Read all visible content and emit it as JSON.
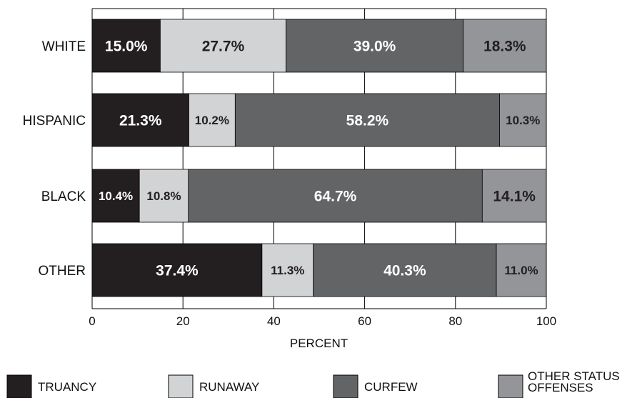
{
  "chart_data": {
    "type": "bar",
    "orientation": "horizontal",
    "stacked": true,
    "categories": [
      "WHITE",
      "HISPANIC",
      "BLACK",
      "OTHER"
    ],
    "series": [
      {
        "name": "TRUANCY",
        "color": "#231f20",
        "values": [
          15.0,
          21.3,
          10.4,
          37.4
        ],
        "labels": [
          "15.0%",
          "21.3%",
          "10.4%",
          "37.4%"
        ]
      },
      {
        "name": "RUNAWAY",
        "color": "#d1d3d4",
        "values": [
          27.7,
          10.2,
          10.8,
          11.3
        ],
        "labels": [
          "27.7%",
          "10.2%",
          "10.8%",
          "11.3%"
        ]
      },
      {
        "name": "CURFEW",
        "color": "#636466",
        "values": [
          39.0,
          58.2,
          64.7,
          40.3
        ],
        "labels": [
          "39.0%",
          "58.2%",
          "64.7%",
          "40.3%"
        ]
      },
      {
        "name": "OTHER STATUS OFFENSES",
        "color": "#939598",
        "values": [
          18.3,
          10.3,
          14.1,
          11.0
        ],
        "labels": [
          "18.3%",
          "10.3%",
          "14.1%",
          "11.0%"
        ]
      }
    ],
    "xlabel": "PERCENT",
    "xlim": [
      0,
      100
    ],
    "xticks": [
      "0",
      "20",
      "40",
      "60",
      "80",
      "100"
    ],
    "grid": true,
    "legend_position": "bottom"
  }
}
